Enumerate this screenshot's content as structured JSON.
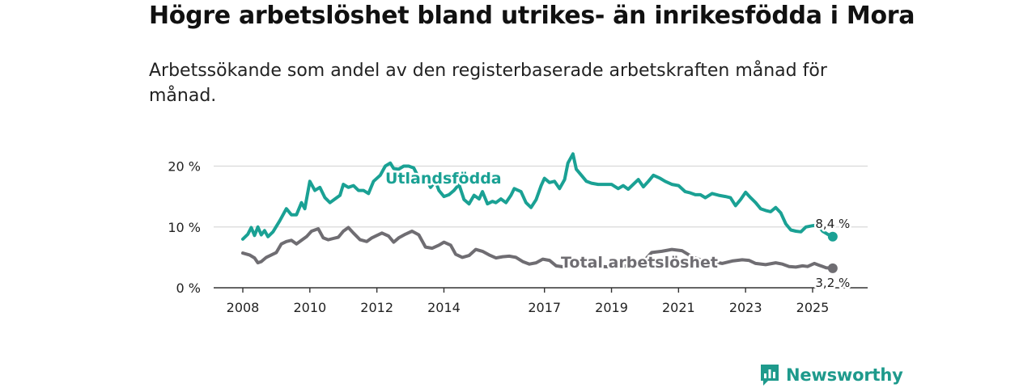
{
  "title": "Högre arbetslöshet bland utrikes- än inrikesfödda i Mora",
  "subtitle": "Arbetssökande som andel av den registerbaserade arbetskraften månad för månad.",
  "brand": {
    "name": "Newsworthy",
    "icon": "newsworthy-logo-icon"
  },
  "colors": {
    "utrikes": "#1aa194",
    "total": "#6f6d72",
    "grid": "#d9d9d9",
    "axis": "#333333"
  },
  "chart_data": {
    "type": "line",
    "title": "Högre arbetslöshet bland utrikes- än inrikesfödda i Mora",
    "xlabel": "",
    "ylabel": "",
    "ylim": [
      0,
      22.5
    ],
    "xlim": [
      2008,
      2026
    ],
    "grid": true,
    "y_ticks": [
      {
        "value": 0,
        "label": "0 %"
      },
      {
        "value": 10,
        "label": "10 %"
      },
      {
        "value": 20,
        "label": "20 %"
      }
    ],
    "x_ticks": [
      {
        "value": 2008,
        "label": "2008"
      },
      {
        "value": 2010,
        "label": "2010"
      },
      {
        "value": 2012,
        "label": "2012"
      },
      {
        "value": 2014,
        "label": "2014"
      },
      {
        "value": 2017,
        "label": "2017"
      },
      {
        "value": 2019,
        "label": "2019"
      },
      {
        "value": 2021,
        "label": "2021"
      },
      {
        "value": 2023,
        "label": "2023"
      },
      {
        "value": 2025,
        "label": "2025"
      }
    ],
    "series": [
      {
        "name": "Utlandsfödda",
        "label": "Utlandsfödda",
        "color": "#1aa194",
        "end_label": "8,4 %",
        "points": [
          [
            2008.0,
            8.0
          ],
          [
            2008.15,
            8.8
          ],
          [
            2008.25,
            9.9
          ],
          [
            2008.35,
            8.6
          ],
          [
            2008.45,
            10.0
          ],
          [
            2008.55,
            8.7
          ],
          [
            2008.65,
            9.4
          ],
          [
            2008.75,
            8.4
          ],
          [
            2008.9,
            9.2
          ],
          [
            2009.1,
            11.0
          ],
          [
            2009.3,
            13.0
          ],
          [
            2009.45,
            12.0
          ],
          [
            2009.6,
            12.0
          ],
          [
            2009.75,
            14.0
          ],
          [
            2009.85,
            13.0
          ],
          [
            2010.0,
            17.5
          ],
          [
            2010.15,
            16.0
          ],
          [
            2010.3,
            16.5
          ],
          [
            2010.45,
            14.8
          ],
          [
            2010.6,
            14.0
          ],
          [
            2010.75,
            14.6
          ],
          [
            2010.9,
            15.2
          ],
          [
            2011.0,
            17.0
          ],
          [
            2011.15,
            16.5
          ],
          [
            2011.3,
            16.8
          ],
          [
            2011.45,
            16.0
          ],
          [
            2011.6,
            16.0
          ],
          [
            2011.75,
            15.5
          ],
          [
            2011.9,
            17.5
          ],
          [
            2012.1,
            18.5
          ],
          [
            2012.25,
            20.0
          ],
          [
            2012.4,
            20.5
          ],
          [
            2012.5,
            19.6
          ],
          [
            2012.65,
            19.5
          ],
          [
            2012.8,
            20.0
          ],
          [
            2012.95,
            20.0
          ],
          [
            2013.1,
            19.7
          ],
          [
            2013.3,
            17.5
          ],
          [
            2013.45,
            18.2
          ],
          [
            2013.6,
            16.5
          ],
          [
            2013.75,
            17.5
          ],
          [
            2013.85,
            16.0
          ],
          [
            2014.0,
            15.0
          ],
          [
            2014.15,
            15.3
          ],
          [
            2014.3,
            16.0
          ],
          [
            2014.45,
            17.0
          ],
          [
            2014.6,
            14.5
          ],
          [
            2014.75,
            13.8
          ],
          [
            2014.9,
            15.2
          ],
          [
            2015.05,
            14.6
          ],
          [
            2015.15,
            15.8
          ],
          [
            2015.3,
            13.8
          ],
          [
            2015.45,
            14.2
          ],
          [
            2015.55,
            14.0
          ],
          [
            2015.7,
            14.6
          ],
          [
            2015.85,
            14.0
          ],
          [
            2016.0,
            15.2
          ],
          [
            2016.1,
            16.3
          ],
          [
            2016.3,
            15.8
          ],
          [
            2016.45,
            14.0
          ],
          [
            2016.6,
            13.2
          ],
          [
            2016.75,
            14.5
          ],
          [
            2016.9,
            16.8
          ],
          [
            2017.0,
            18.0
          ],
          [
            2017.15,
            17.3
          ],
          [
            2017.3,
            17.5
          ],
          [
            2017.45,
            16.3
          ],
          [
            2017.6,
            17.8
          ],
          [
            2017.7,
            20.5
          ],
          [
            2017.85,
            22.0
          ],
          [
            2017.95,
            19.5
          ],
          [
            2018.1,
            18.5
          ],
          [
            2018.25,
            17.5
          ],
          [
            2018.4,
            17.2
          ],
          [
            2018.6,
            17.0
          ],
          [
            2018.8,
            17.0
          ],
          [
            2019.0,
            17.0
          ],
          [
            2019.2,
            16.3
          ],
          [
            2019.35,
            16.8
          ],
          [
            2019.5,
            16.2
          ],
          [
            2019.65,
            17.0
          ],
          [
            2019.8,
            17.8
          ],
          [
            2019.95,
            16.6
          ],
          [
            2020.1,
            17.5
          ],
          [
            2020.25,
            18.5
          ],
          [
            2020.45,
            18.0
          ],
          [
            2020.6,
            17.5
          ],
          [
            2020.8,
            17.0
          ],
          [
            2021.0,
            16.8
          ],
          [
            2021.2,
            15.8
          ],
          [
            2021.35,
            15.6
          ],
          [
            2021.5,
            15.3
          ],
          [
            2021.65,
            15.3
          ],
          [
            2021.8,
            14.8
          ],
          [
            2022.0,
            15.5
          ],
          [
            2022.2,
            15.2
          ],
          [
            2022.4,
            15.0
          ],
          [
            2022.55,
            14.8
          ],
          [
            2022.7,
            13.5
          ],
          [
            2022.85,
            14.5
          ],
          [
            2023.0,
            15.7
          ],
          [
            2023.15,
            14.8
          ],
          [
            2023.3,
            14.0
          ],
          [
            2023.45,
            13.0
          ],
          [
            2023.6,
            12.7
          ],
          [
            2023.75,
            12.5
          ],
          [
            2023.9,
            13.2
          ],
          [
            2024.05,
            12.3
          ],
          [
            2024.2,
            10.5
          ],
          [
            2024.35,
            9.5
          ],
          [
            2024.5,
            9.3
          ],
          [
            2024.65,
            9.2
          ],
          [
            2024.8,
            10.0
          ],
          [
            2025.0,
            10.2
          ],
          [
            2025.15,
            10.3
          ],
          [
            2025.3,
            9.3
          ],
          [
            2025.45,
            8.8
          ],
          [
            2025.6,
            8.4
          ]
        ]
      },
      {
        "name": "Total arbetslöshet",
        "label": "Total arbetslöshet",
        "color": "#6f6d72",
        "end_label": "3,2 %",
        "points": [
          [
            2008.0,
            5.7
          ],
          [
            2008.2,
            5.4
          ],
          [
            2008.35,
            4.9
          ],
          [
            2008.45,
            4.1
          ],
          [
            2008.55,
            4.3
          ],
          [
            2008.7,
            5.0
          ],
          [
            2008.85,
            5.4
          ],
          [
            2009.0,
            5.8
          ],
          [
            2009.15,
            7.2
          ],
          [
            2009.3,
            7.6
          ],
          [
            2009.45,
            7.8
          ],
          [
            2009.6,
            7.2
          ],
          [
            2009.75,
            7.8
          ],
          [
            2009.9,
            8.4
          ],
          [
            2010.05,
            9.3
          ],
          [
            2010.25,
            9.7
          ],
          [
            2010.4,
            8.2
          ],
          [
            2010.55,
            7.9
          ],
          [
            2010.7,
            8.1
          ],
          [
            2010.85,
            8.3
          ],
          [
            2011.0,
            9.3
          ],
          [
            2011.15,
            9.9
          ],
          [
            2011.3,
            9.0
          ],
          [
            2011.5,
            7.9
          ],
          [
            2011.7,
            7.6
          ],
          [
            2011.85,
            8.2
          ],
          [
            2012.0,
            8.6
          ],
          [
            2012.15,
            9.0
          ],
          [
            2012.35,
            8.5
          ],
          [
            2012.5,
            7.5
          ],
          [
            2012.65,
            8.2
          ],
          [
            2012.85,
            8.8
          ],
          [
            2013.05,
            9.3
          ],
          [
            2013.25,
            8.7
          ],
          [
            2013.45,
            6.7
          ],
          [
            2013.65,
            6.5
          ],
          [
            2013.85,
            7.0
          ],
          [
            2014.0,
            7.5
          ],
          [
            2014.2,
            7.0
          ],
          [
            2014.35,
            5.5
          ],
          [
            2014.55,
            5.0
          ],
          [
            2014.75,
            5.3
          ],
          [
            2014.95,
            6.3
          ],
          [
            2015.15,
            6.0
          ],
          [
            2015.35,
            5.4
          ],
          [
            2015.55,
            4.9
          ],
          [
            2015.75,
            5.1
          ],
          [
            2015.95,
            5.2
          ],
          [
            2016.15,
            5.0
          ],
          [
            2016.35,
            4.3
          ],
          [
            2016.55,
            3.9
          ],
          [
            2016.75,
            4.1
          ],
          [
            2016.95,
            4.7
          ],
          [
            2017.15,
            4.5
          ],
          [
            2017.35,
            3.6
          ],
          [
            2017.6,
            3.4
          ],
          [
            2017.9,
            3.6
          ],
          [
            2018.3,
            3.7
          ],
          [
            2018.7,
            3.5
          ],
          [
            2019.1,
            3.4
          ],
          [
            2019.5,
            3.6
          ],
          [
            2019.9,
            4.0
          ],
          [
            2020.2,
            5.8
          ],
          [
            2020.5,
            6.0
          ],
          [
            2020.8,
            6.3
          ],
          [
            2021.1,
            6.1
          ],
          [
            2021.4,
            5.1
          ],
          [
            2021.7,
            4.5
          ],
          [
            2022.0,
            4.3
          ],
          [
            2022.3,
            4.0
          ],
          [
            2022.6,
            4.4
          ],
          [
            2022.9,
            4.6
          ],
          [
            2023.1,
            4.5
          ],
          [
            2023.3,
            4.0
          ],
          [
            2023.6,
            3.8
          ],
          [
            2023.9,
            4.1
          ],
          [
            2024.1,
            3.9
          ],
          [
            2024.3,
            3.5
          ],
          [
            2024.5,
            3.4
          ],
          [
            2024.7,
            3.6
          ],
          [
            2024.85,
            3.5
          ],
          [
            2025.05,
            4.0
          ],
          [
            2025.2,
            3.7
          ],
          [
            2025.4,
            3.3
          ],
          [
            2025.6,
            3.2
          ]
        ]
      }
    ]
  }
}
